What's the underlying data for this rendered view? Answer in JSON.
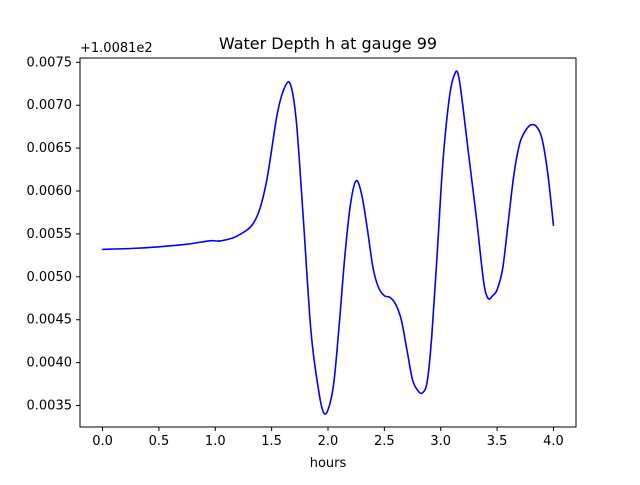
{
  "chart_data": {
    "type": "line",
    "title": "Water Depth h at gauge 99",
    "xlabel": "hours",
    "ylabel": "",
    "offset_label": "+1.0081e2",
    "xlim": [
      -0.2,
      4.2
    ],
    "ylim": [
      0.00325,
      0.00755
    ],
    "x_ticks": [
      0.0,
      0.5,
      1.0,
      1.5,
      2.0,
      2.5,
      3.0,
      3.5,
      4.0
    ],
    "x_tick_labels": [
      "0.0",
      "0.5",
      "1.0",
      "1.5",
      "2.0",
      "2.5",
      "3.0",
      "3.5",
      "4.0"
    ],
    "y_ticks": [
      0.0035,
      0.004,
      0.0045,
      0.005,
      0.0055,
      0.006,
      0.0065,
      0.007,
      0.0075
    ],
    "y_tick_labels": [
      "0.0035",
      "0.0040",
      "0.0045",
      "0.0050",
      "0.0055",
      "0.0060",
      "0.0065",
      "0.0070",
      "0.0075"
    ],
    "grid": false,
    "series": [
      {
        "color": "#0000ff",
        "x": [
          0.0,
          0.25,
          0.5,
          0.75,
          0.95,
          1.05,
          1.2,
          1.35,
          1.45,
          1.55,
          1.62,
          1.67,
          1.72,
          1.78,
          1.85,
          1.92,
          1.96,
          2.0,
          2.05,
          2.1,
          2.15,
          2.2,
          2.25,
          2.3,
          2.35,
          2.4,
          2.45,
          2.5,
          2.55,
          2.6,
          2.65,
          2.7,
          2.75,
          2.8,
          2.84,
          2.88,
          2.92,
          2.97,
          3.02,
          3.08,
          3.13,
          3.16,
          3.2,
          3.25,
          3.32,
          3.38,
          3.42,
          3.46,
          3.5,
          3.55,
          3.6,
          3.65,
          3.7,
          3.75,
          3.8,
          3.85,
          3.9,
          3.95,
          4.0
        ],
        "y": [
          0.00532,
          0.00533,
          0.00535,
          0.00538,
          0.00542,
          0.00542,
          0.00548,
          0.00565,
          0.00608,
          0.0069,
          0.00722,
          0.00723,
          0.0068,
          0.0057,
          0.00435,
          0.00365,
          0.00342,
          0.00345,
          0.00375,
          0.00445,
          0.00525,
          0.00585,
          0.00612,
          0.00595,
          0.00555,
          0.0051,
          0.00487,
          0.00478,
          0.00476,
          0.00468,
          0.0045,
          0.00415,
          0.0038,
          0.00367,
          0.00365,
          0.00378,
          0.0043,
          0.0053,
          0.00635,
          0.00712,
          0.00738,
          0.00733,
          0.00695,
          0.0064,
          0.00565,
          0.00495,
          0.00475,
          0.00478,
          0.00485,
          0.0051,
          0.00565,
          0.0062,
          0.00655,
          0.0067,
          0.00677,
          0.00675,
          0.0066,
          0.0062,
          0.0056
        ]
      }
    ]
  }
}
